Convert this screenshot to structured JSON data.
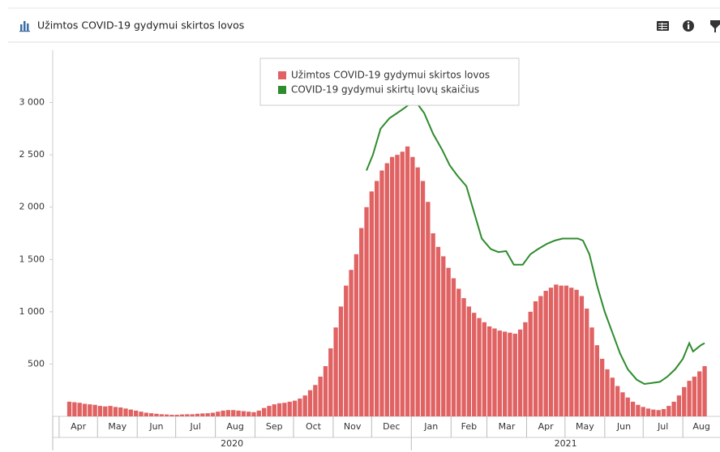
{
  "chart_data": {
    "type": "bar_line",
    "title": "Užimtos COVID-19 gydymui skirtos lovos",
    "xlim": [
      0,
      521
    ],
    "xticks": [
      5,
      35,
      66,
      96,
      127,
      158,
      188,
      219,
      249,
      280,
      311,
      339,
      370,
      400,
      431,
      461,
      492
    ],
    "months": [
      "Apr",
      "May",
      "Jun",
      "Jul",
      "Aug",
      "Sep",
      "Oct",
      "Nov",
      "Dec",
      "Jan",
      "Feb",
      "Mar",
      "Apr",
      "May",
      "Jun",
      "Jul",
      "Aug"
    ],
    "years": [
      "2020",
      "2021"
    ],
    "year_boundary": 280,
    "ylim": [
      0,
      3500
    ],
    "yticks": [
      500,
      {
        "value": 1000,
        "label": "1 000"
      },
      {
        "value": 1500,
        "label": "1 500"
      },
      {
        "value": 2000,
        "label": "2 000"
      },
      {
        "value": 2500,
        "label": "2 500"
      },
      {
        "value": 3000,
        "label": "3 000"
      }
    ],
    "grid": false,
    "series": [
      {
        "name": "Užimtos COVID-19 gydymui skirtos lovos",
        "type": "bar",
        "color": "#e06262",
        "x": [
          13,
          17,
          21,
          25,
          29,
          33,
          37,
          41,
          45,
          49,
          53,
          57,
          61,
          65,
          69,
          73,
          77,
          81,
          85,
          89,
          93,
          97,
          101,
          105,
          109,
          113,
          117,
          121,
          125,
          129,
          133,
          137,
          141,
          145,
          149,
          153,
          157,
          161,
          165,
          169,
          173,
          177,
          181,
          185,
          189,
          193,
          197,
          201,
          205,
          209,
          213,
          217,
          221,
          225,
          229,
          233,
          237,
          241,
          245,
          249,
          253,
          257,
          261,
          265,
          269,
          273,
          277,
          281,
          285,
          289,
          293,
          297,
          301,
          305,
          309,
          313,
          317,
          321,
          325,
          329,
          333,
          337,
          341,
          345,
          349,
          353,
          357,
          361,
          365,
          369,
          373,
          377,
          381,
          385,
          389,
          393,
          397,
          401,
          405,
          409,
          413,
          417,
          421,
          425,
          429,
          433,
          437,
          441,
          445,
          449,
          453,
          457,
          461,
          465,
          469,
          473,
          477,
          481,
          485,
          489,
          493,
          497,
          501,
          505,
          509
        ],
        "values": [
          140,
          135,
          130,
          120,
          115,
          110,
          100,
          95,
          100,
          90,
          85,
          75,
          65,
          55,
          45,
          35,
          30,
          25,
          20,
          18,
          15,
          15,
          18,
          20,
          20,
          25,
          28,
          30,
          35,
          45,
          55,
          60,
          60,
          55,
          50,
          45,
          40,
          55,
          80,
          100,
          115,
          125,
          130,
          140,
          150,
          170,
          200,
          250,
          300,
          380,
          480,
          650,
          850,
          1050,
          1250,
          1400,
          1550,
          1800,
          2000,
          2150,
          2250,
          2350,
          2420,
          2480,
          2500,
          2530,
          2580,
          2480,
          2380,
          2250,
          2050,
          1750,
          1620,
          1530,
          1420,
          1320,
          1220,
          1130,
          1050,
          990,
          940,
          900,
          860,
          840,
          820,
          810,
          800,
          790,
          830,
          900,
          1000,
          1100,
          1150,
          1200,
          1230,
          1260,
          1250,
          1250,
          1230,
          1210,
          1150,
          1030,
          850,
          680,
          550,
          450,
          370,
          290,
          230,
          180,
          140,
          110,
          90,
          75,
          65,
          60,
          70,
          100,
          140,
          200,
          280,
          340,
          380,
          430,
          480
        ]
      },
      {
        "name": "COVID-19 gydymui skirtų lovų skaičius",
        "type": "line",
        "color": "#2e8b2e",
        "x": [
          245,
          250,
          256,
          263,
          269,
          275,
          280,
          284,
          290,
          297,
          304,
          310,
          316,
          323,
          329,
          335,
          342,
          348,
          354,
          360,
          367,
          373,
          379,
          386,
          392,
          398,
          404,
          410,
          414,
          419,
          425,
          431,
          437,
          443,
          449,
          456,
          462,
          468,
          474,
          480,
          486,
          492,
          497,
          500,
          506,
          509
        ],
        "values": [
          2350,
          2500,
          2750,
          2850,
          2900,
          2950,
          3000,
          3000,
          2900,
          2700,
          2550,
          2400,
          2300,
          2200,
          1950,
          1700,
          1600,
          1570,
          1580,
          1450,
          1450,
          1550,
          1600,
          1650,
          1680,
          1700,
          1700,
          1700,
          1680,
          1550,
          1250,
          1000,
          800,
          600,
          450,
          350,
          310,
          320,
          330,
          380,
          450,
          550,
          700,
          620,
          680,
          700
        ]
      }
    ]
  }
}
